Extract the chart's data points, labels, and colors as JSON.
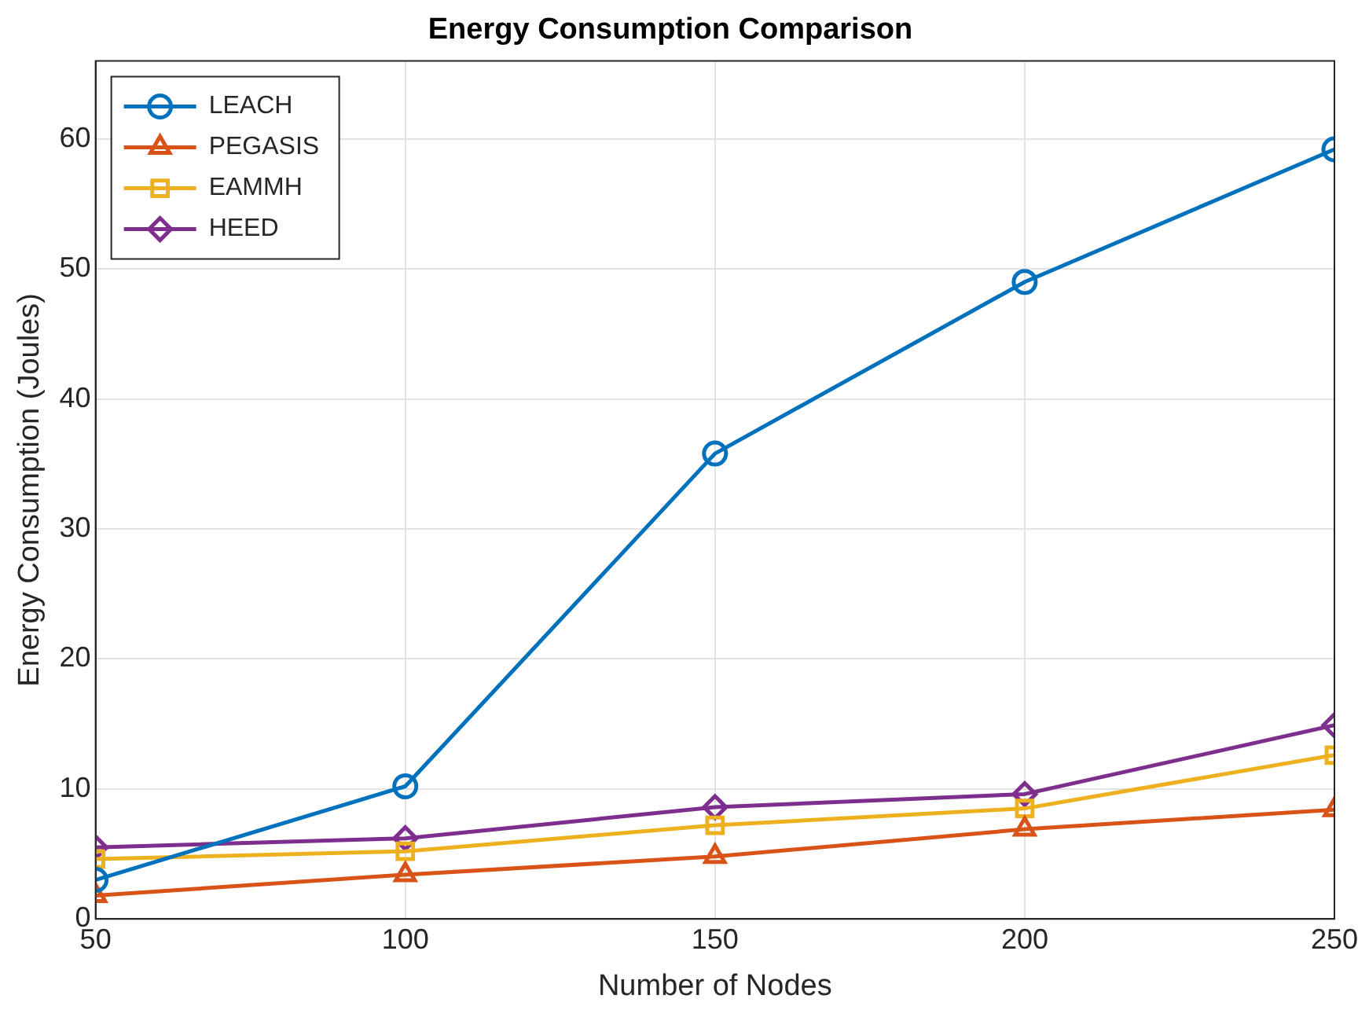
{
  "chart_data": {
    "type": "line",
    "title": "Energy Consumption Comparison",
    "xlabel": "Number of Nodes",
    "ylabel": "Energy Consumption (Joules)",
    "x": [
      50,
      100,
      150,
      200,
      250
    ],
    "xlim": [
      50,
      250
    ],
    "xticks": [
      50,
      100,
      150,
      200,
      250
    ],
    "ylim": [
      0,
      66
    ],
    "yticks": [
      0,
      10,
      20,
      30,
      40,
      50,
      60
    ],
    "grid": true,
    "legend": "top left",
    "line_style": "solid",
    "series": [
      {
        "name": "LEACH",
        "color": "#0072bd",
        "marker": "circle",
        "values": [
          3,
          10.2,
          35.8,
          49,
          59.2
        ]
      },
      {
        "name": "PEGASIS",
        "color": "#d95319",
        "marker": "triangle",
        "values": [
          1.8,
          3.4,
          4.8,
          6.9,
          8.4
        ]
      },
      {
        "name": "EAMMH",
        "color": "#edb120",
        "marker": "square",
        "values": [
          4.6,
          5.2,
          7.2,
          8.5,
          12.6
        ]
      },
      {
        "name": "HEED",
        "color": "#7e2f8e",
        "marker": "diamond",
        "values": [
          5.5,
          6.2,
          8.6,
          9.6,
          14.9
        ]
      }
    ]
  }
}
